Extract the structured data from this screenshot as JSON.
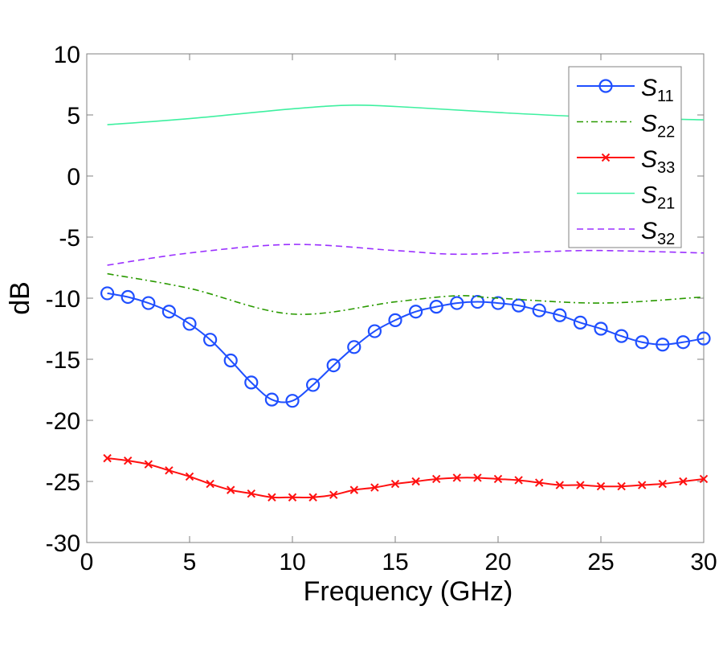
{
  "chart_data": {
    "type": "line",
    "title": "",
    "xlabel": "Frequency (GHz)",
    "ylabel": "dB",
    "xlim": [
      0,
      30
    ],
    "ylim": [
      -30,
      10
    ],
    "xticks": [
      0,
      5,
      10,
      15,
      20,
      25,
      30
    ],
    "yticks": [
      10,
      5,
      0,
      -5,
      -10,
      -15,
      -20,
      -25,
      -30
    ],
    "grid": false,
    "legend_position": "top-right",
    "series": [
      {
        "name": "S",
        "sub": "11",
        "color": "#1f4fff",
        "style": "solid",
        "marker": "circle",
        "x": [
          1,
          2,
          3,
          4,
          5,
          6,
          7,
          8,
          9,
          10,
          11,
          12,
          13,
          14,
          15,
          16,
          17,
          18,
          19,
          20,
          21,
          22,
          23,
          24,
          25,
          26,
          27,
          28,
          29,
          30
        ],
        "y": [
          -9.6,
          -9.9,
          -10.4,
          -11.1,
          -12.1,
          -13.4,
          -15.1,
          -16.9,
          -18.3,
          -18.4,
          -17.1,
          -15.5,
          -14.0,
          -12.7,
          -11.8,
          -11.1,
          -10.7,
          -10.4,
          -10.3,
          -10.4,
          -10.6,
          -11.0,
          -11.4,
          -12.0,
          -12.5,
          -13.1,
          -13.6,
          -13.8,
          -13.6,
          -13.3
        ]
      },
      {
        "name": "S",
        "sub": "22",
        "color": "#2a9a00",
        "style": "dashdot",
        "marker": "none",
        "x": [
          1,
          5,
          10,
          15,
          18,
          20,
          25,
          30
        ],
        "y": [
          -8.0,
          -9.2,
          -11.3,
          -10.3,
          -9.8,
          -10.0,
          -10.4,
          -9.9
        ]
      },
      {
        "name": "S",
        "sub": "33",
        "color": "#ff1010",
        "style": "solid",
        "marker": "x",
        "x": [
          1,
          2,
          3,
          4,
          5,
          6,
          7,
          8,
          9,
          10,
          11,
          12,
          13,
          14,
          15,
          16,
          17,
          18,
          19,
          20,
          21,
          22,
          23,
          24,
          25,
          26,
          27,
          28,
          29,
          30
        ],
        "y": [
          -23.1,
          -23.3,
          -23.6,
          -24.1,
          -24.6,
          -25.2,
          -25.7,
          -26.0,
          -26.3,
          -26.3,
          -26.3,
          -26.1,
          -25.7,
          -25.5,
          -25.2,
          -25.0,
          -24.8,
          -24.7,
          -24.7,
          -24.8,
          -24.9,
          -25.1,
          -25.3,
          -25.3,
          -25.4,
          -25.4,
          -25.3,
          -25.2,
          -25.0,
          -24.8
        ]
      },
      {
        "name": "S",
        "sub": "21",
        "color": "#3ef0a0",
        "style": "solid",
        "marker": "none",
        "x": [
          1,
          5,
          10,
          13,
          16,
          20,
          25,
          30
        ],
        "y": [
          4.2,
          4.7,
          5.5,
          5.8,
          5.6,
          5.2,
          4.8,
          4.6
        ]
      },
      {
        "name": "S",
        "sub": "32",
        "color": "#9a30ff",
        "style": "dashed",
        "marker": "none",
        "x": [
          1,
          5,
          10,
          15,
          18,
          22,
          25,
          30
        ],
        "y": [
          -7.3,
          -6.3,
          -5.6,
          -6.1,
          -6.4,
          -6.2,
          -6.1,
          -6.3
        ]
      }
    ]
  }
}
